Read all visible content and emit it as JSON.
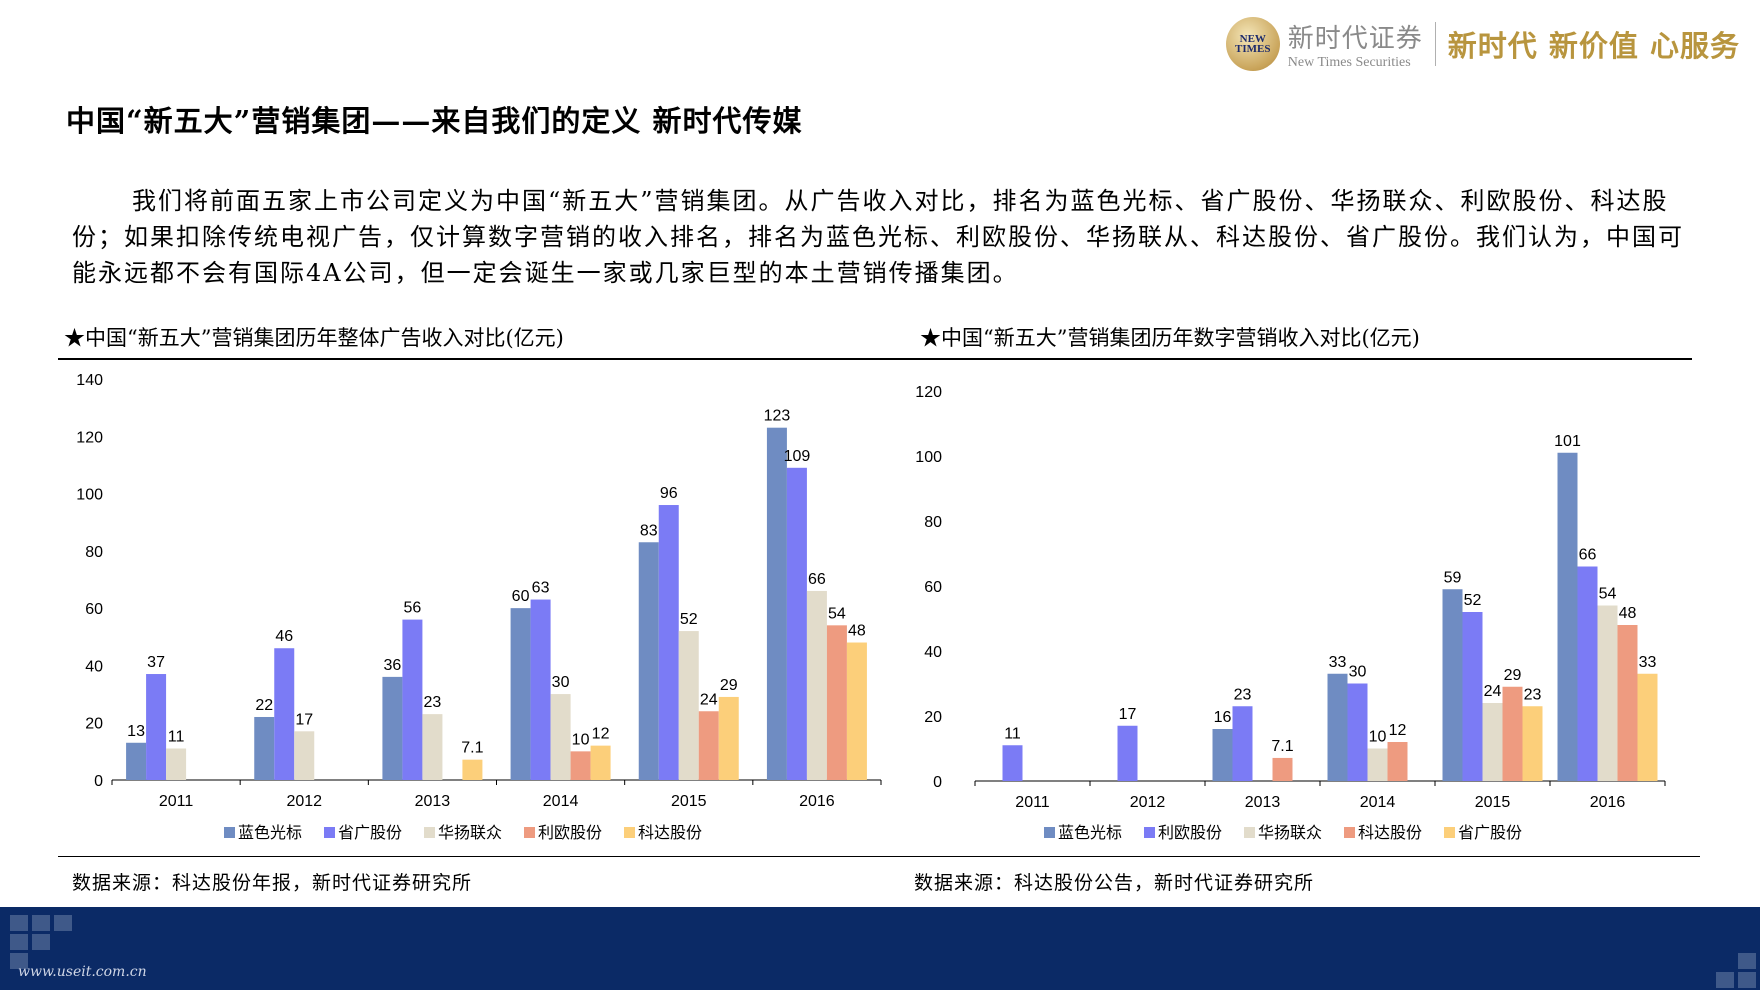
{
  "header": {
    "logo_text": "NEW TIMES",
    "brand_cn": "新时代证券",
    "brand_en": "New Times Securities",
    "slogan": "新时代 新价值 心服务"
  },
  "page": {
    "title": "中国“新五大”营销集团——来自我们的定义 新时代传媒",
    "intro": "我们将前面五家上市公司定义为中国“新五大”营销集团。从广告收入对比，排名为蓝色光标、省广股份、华扬联众、利欧股份、科达股份；如果扣除传统电视广告，仅计算数字营销的收入排名，排名为蓝色光标、利欧股份、华扬联从、科达股份、省广股份。我们认为，中国可能永远都不会有国际4A公司，但一定会诞生一家或几家巨型的本土营销传播集团。"
  },
  "colors": {
    "蓝色光标": "#6f8cc2",
    "省广股份_left": "#7b7bf5",
    "华扬联众": "#e2dccb",
    "利欧股份_left": "#ee9b80",
    "科达股份_left": "#fccf7a"
  },
  "chart_data": [
    {
      "type": "bar",
      "title": "★中国“新五大”营销集团历年整体广告收入对比(亿元)",
      "source": "数据来源：科达股份年报，新时代证券研究所",
      "categories": [
        "2011",
        "2012",
        "2013",
        "2014",
        "2015",
        "2016"
      ],
      "ylim": [
        0,
        140
      ],
      "yticks": [
        0,
        20,
        40,
        60,
        80,
        100,
        120,
        140
      ],
      "legend_position": "bottom",
      "series": [
        {
          "name": "蓝色光标",
          "color": "#6f8cc2",
          "values": [
            13,
            22,
            36,
            60,
            83,
            123
          ]
        },
        {
          "name": "省广股份",
          "color": "#7b7bf5",
          "values": [
            37,
            46,
            56,
            63,
            96,
            109
          ]
        },
        {
          "name": "华扬联众",
          "color": "#e2dccb",
          "values": [
            11,
            17,
            23,
            30,
            52,
            66
          ]
        },
        {
          "name": "利欧股份",
          "color": "#ee9b80",
          "values": [
            null,
            null,
            null,
            10,
            24,
            54
          ]
        },
        {
          "name": "科达股份",
          "color": "#fccf7a",
          "values": [
            null,
            null,
            7.1,
            12,
            29,
            48
          ]
        }
      ]
    },
    {
      "type": "bar",
      "title": "★中国“新五大”营销集团历年数字营销收入对比(亿元)",
      "source": "数据来源：科达股份公告，新时代证券研究所",
      "categories": [
        "2011",
        "2012",
        "2013",
        "2014",
        "2015",
        "2016"
      ],
      "ylim": [
        0,
        120
      ],
      "yticks": [
        0,
        20,
        40,
        60,
        80,
        100,
        120
      ],
      "legend_position": "bottom",
      "series": [
        {
          "name": "蓝色光标",
          "color": "#6f8cc2",
          "values": [
            null,
            null,
            16,
            33,
            59,
            101
          ]
        },
        {
          "name": "利欧股份",
          "color": "#7b7bf5",
          "values": [
            11,
            17,
            23,
            30,
            52,
            66
          ]
        },
        {
          "name": "华扬联众",
          "color": "#e2dccb",
          "values": [
            null,
            null,
            null,
            10,
            24,
            54
          ]
        },
        {
          "name": "科达股份",
          "color": "#ee9b80",
          "values": [
            null,
            null,
            7.1,
            12,
            29,
            48
          ]
        },
        {
          "name": "省广股份",
          "color": "#fccf7a",
          "values": [
            null,
            null,
            null,
            null,
            23,
            33
          ]
        }
      ]
    }
  ],
  "footer": {
    "url": "www.useit.com.cn"
  }
}
